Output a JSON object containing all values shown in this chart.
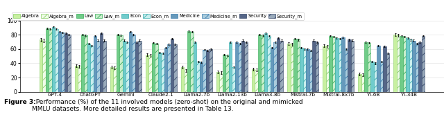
{
  "models": [
    "GPT-4",
    "ChatGPT",
    "Gemini",
    "Claude2.1",
    "Llama2-7b",
    "Llama2-13b",
    "Llama3-8b",
    "Mistral-7b",
    "Mixtral-8x7b",
    "Yi-6B",
    "Yi-34B"
  ],
  "categories": [
    "Algebra",
    "Algebra_m",
    "Law",
    "Law_m",
    "Econ",
    "Econ_m",
    "Medicine",
    "Medicine_m",
    "Security",
    "Security_m"
  ],
  "data": {
    "Algebra": [
      73,
      37,
      35,
      52,
      35,
      28,
      32,
      68,
      65,
      25,
      80
    ],
    "Algebra_m": [
      72,
      36,
      34,
      51,
      30,
      27,
      31,
      67,
      64,
      24,
      79
    ],
    "Law": [
      89,
      80,
      80,
      69,
      85,
      52,
      80,
      74,
      78,
      70,
      78
    ],
    "Law_m": [
      88,
      79,
      79,
      68,
      84,
      51,
      79,
      73,
      77,
      69,
      77
    ],
    "Econ": [
      91,
      68,
      72,
      55,
      70,
      70,
      82,
      62,
      75,
      42,
      75
    ],
    "Econ_m": [
      88,
      65,
      70,
      54,
      42,
      35,
      78,
      60,
      74,
      40,
      73
    ],
    "Medicine": [
      84,
      78,
      84,
      62,
      41,
      70,
      62,
      60,
      76,
      65,
      72
    ],
    "Medicine_m": [
      83,
      72,
      80,
      67,
      59,
      68,
      70,
      58,
      60,
      42,
      68
    ],
    "Security": [
      82,
      82,
      70,
      74,
      58,
      72,
      75,
      72,
      73,
      64,
      70
    ],
    "Security_m": [
      80,
      72,
      72,
      67,
      60,
      70,
      72,
      70,
      72,
      54,
      78
    ]
  },
  "errors": {
    "Algebra": [
      2,
      2,
      2,
      2,
      2,
      2,
      2,
      2,
      2,
      2,
      2
    ],
    "Algebra_m": [
      2,
      2,
      2,
      2,
      2,
      2,
      2,
      2,
      2,
      2,
      2
    ],
    "Law": [
      1,
      1,
      1,
      1,
      1,
      1,
      1,
      1,
      1,
      1,
      1
    ],
    "Law_m": [
      1,
      1,
      1,
      1,
      1,
      1,
      1,
      1,
      1,
      1,
      1
    ],
    "Econ": [
      1,
      1,
      1,
      1,
      1,
      1,
      1,
      1,
      1,
      1,
      1
    ],
    "Econ_m": [
      1,
      1,
      1,
      1,
      1,
      1,
      1,
      1,
      1,
      1,
      1
    ],
    "Medicine": [
      1,
      1,
      1,
      1,
      1,
      1,
      1,
      1,
      1,
      1,
      1
    ],
    "Medicine_m": [
      1,
      1,
      1,
      1,
      1,
      1,
      1,
      1,
      1,
      1,
      1
    ],
    "Security": [
      1,
      1,
      1,
      1,
      1,
      1,
      1,
      1,
      1,
      1,
      1
    ],
    "Security_m": [
      1,
      1,
      1,
      1,
      1,
      1,
      1,
      1,
      1,
      1,
      1
    ]
  },
  "bar_colors_map": {
    "Algebra": "#c8f0a0",
    "Algebra_m": "#f0fce8",
    "Law": "#70cc88",
    "Law_m": "#c8eecc",
    "Econ": "#70cccc",
    "Econ_m": "#c8eeee",
    "Medicine": "#6699bb",
    "Medicine_m": "#aaccdd",
    "Security": "#556688",
    "Security_m": "#99aabb"
  },
  "bar_edge_map": {
    "Algebra": "#88cc66",
    "Algebra_m": "#88cc66",
    "Law": "#33aa55",
    "Law_m": "#33aa55",
    "Econ": "#33aaaa",
    "Econ_m": "#33aaaa",
    "Medicine": "#3377aa",
    "Medicine_m": "#3377aa",
    "Security": "#334466",
    "Security_m": "#334466"
  },
  "hatch_map": {
    "Algebra": "",
    "Algebra_m": "///",
    "Law": "",
    "Law_m": "///",
    "Econ": "",
    "Econ_m": "///",
    "Medicine": "",
    "Medicine_m": "///",
    "Security": "",
    "Security_m": "///"
  },
  "ylim": [
    0,
    100
  ],
  "yticks": [
    0,
    20,
    40,
    60,
    80,
    100
  ],
  "caption_bold": "Figure 3:",
  "caption_rest": "  Performance (%) of the 11 involved models (zero-shot) on the original and mimicked\nMMLU datasets. More detailed results are presented in Table 13."
}
